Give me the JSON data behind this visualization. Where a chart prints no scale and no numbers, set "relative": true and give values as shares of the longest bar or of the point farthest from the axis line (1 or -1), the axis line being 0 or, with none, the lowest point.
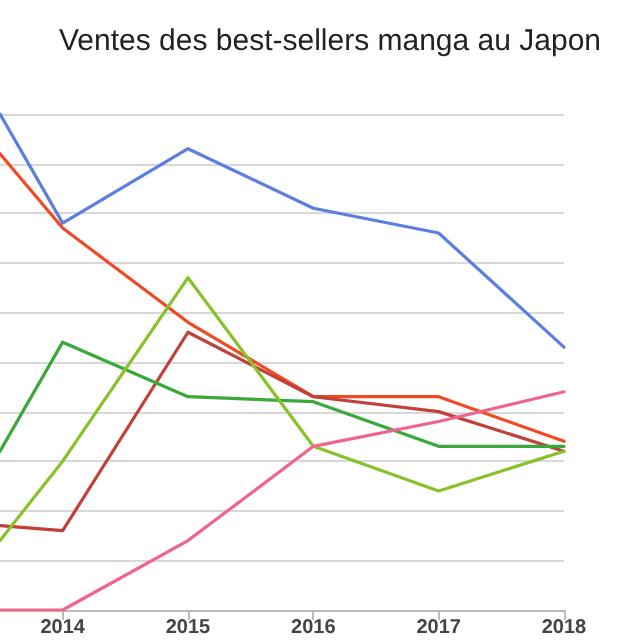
{
  "chart_data": {
    "type": "line",
    "title": "Ventes des best-sellers manga au Japon",
    "relative": true,
    "x": [
      2013.5,
      2014,
      2015,
      2016,
      2017,
      2018
    ],
    "xlim": [
      2013.5,
      2018
    ],
    "xticks": [
      2014,
      2015,
      2016,
      2017,
      2018
    ],
    "grid": "y",
    "marker": "none",
    "line_style": "solid",
    "series": [
      {
        "color": "#5b7fe0",
        "values": [
          1,
          0.78,
          0.93,
          0.81,
          0.76,
          0.53
        ]
      },
      {
        "color": "#f04a24",
        "values": [
          0.92,
          0.77,
          0.58,
          0.43,
          0.43,
          0.34
        ]
      },
      {
        "color": "#c0403a",
        "values": [
          0.17,
          0.16,
          0.56,
          0.43,
          0.4,
          0.32
        ]
      },
      {
        "color": "#3aa83a",
        "values": [
          0.32,
          0.54,
          0.43,
          0.42,
          0.33,
          0.33
        ]
      },
      {
        "color": "#88c22a",
        "values": [
          0.14,
          0.3,
          0.67,
          0.33,
          0.24,
          0.32
        ]
      },
      {
        "color": "#f0648c",
        "values": [
          0,
          0,
          0.14,
          0.33,
          0.38,
          0.44
        ]
      }
    ]
  }
}
